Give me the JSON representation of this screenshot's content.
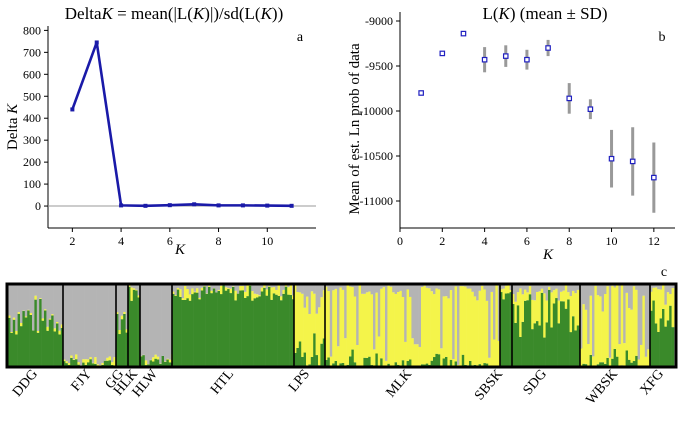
{
  "chart_data": [
    {
      "type": "line",
      "panel_label": "a",
      "title_parts": [
        "Delta",
        "K",
        " = mean(|L(",
        "K",
        ")|)/sd(L(",
        "K",
        "))"
      ],
      "xlabel": "K",
      "ylabel_parts": [
        "Delta ",
        "K"
      ],
      "x": [
        2,
        3,
        4,
        5,
        6,
        7,
        8,
        9,
        10,
        11
      ],
      "values": [
        440,
        745,
        3,
        1,
        4,
        8,
        3,
        3,
        2,
        1
      ],
      "xlim": [
        1,
        12
      ],
      "ylim": [
        -100,
        820
      ],
      "xticks": [
        "2",
        "4",
        "6",
        "8",
        "10"
      ],
      "yticks": [
        "0",
        "100",
        "200",
        "300",
        "400",
        "500",
        "600",
        "700",
        "800"
      ],
      "color": "#1a1aa8"
    },
    {
      "type": "scatter",
      "panel_label": "b",
      "title_parts": [
        "L(",
        "K",
        ") (mean ± SD)"
      ],
      "xlabel": "K",
      "ylabel": "Mean of est. Ln prob of data",
      "x": [
        1,
        2,
        3,
        4,
        5,
        6,
        7,
        8,
        9,
        10,
        11,
        12
      ],
      "mean": [
        -9800,
        -9360,
        -9140,
        -9430,
        -9390,
        -9430,
        -9300,
        -9860,
        -9980,
        -10530,
        -10560,
        -10740
      ],
      "sd": [
        0,
        0,
        0,
        140,
        120,
        110,
        90,
        170,
        110,
        320,
        380,
        390
      ],
      "xlim": [
        0,
        13
      ],
      "ylim": [
        -11300,
        -8900
      ],
      "xticks": [
        "0",
        "2",
        "4",
        "6",
        "8",
        "10",
        "12"
      ],
      "yticks": [
        "-9000",
        "-9500",
        "-10000",
        "-10500",
        "-11000"
      ],
      "point_color": "#2020c0",
      "errbar_color": "#999999"
    },
    {
      "type": "bar",
      "subtype": "stacked-admixture",
      "panel_label": "c",
      "colors": {
        "green": "#3a8a2a",
        "yellow": "#f4f44a",
        "gray": "#b4b4b4"
      },
      "populations": [
        "DDG",
        "FJY",
        "GG",
        "HLK",
        "HLW",
        "HTL",
        "LPS",
        "MLK",
        "SBSK",
        "SDG",
        "WBSK",
        "XFG"
      ]
    }
  ]
}
